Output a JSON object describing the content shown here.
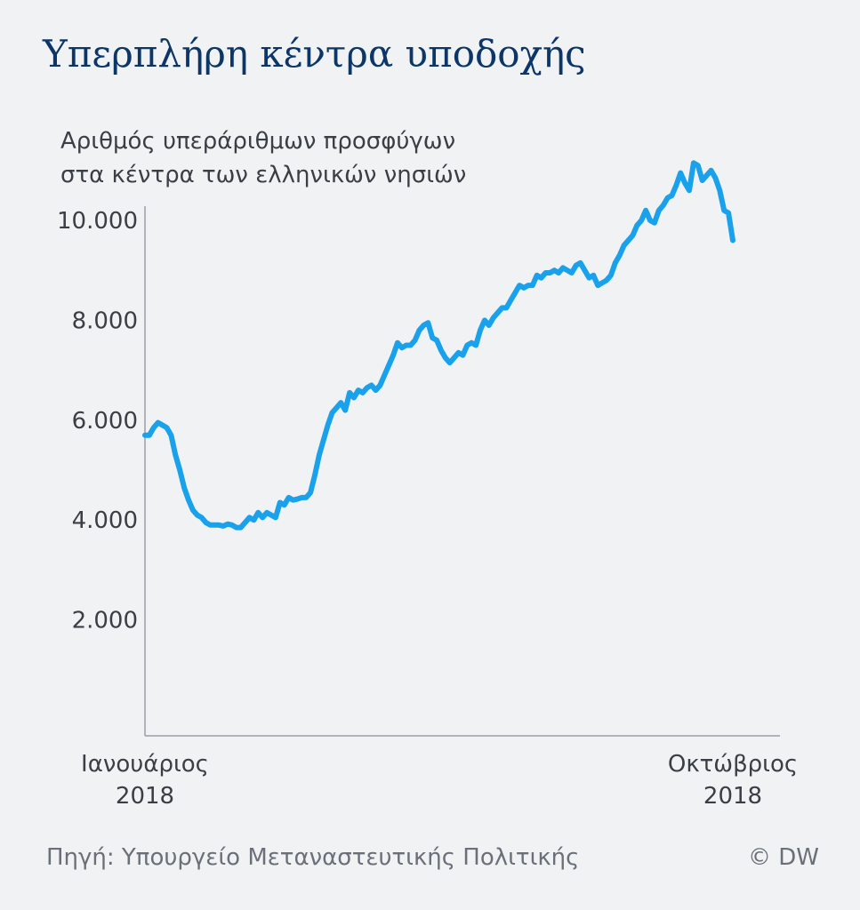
{
  "header": {
    "title": "Υπερπλήρη κέντρα υποδοχής",
    "subtitle_line1": "Αριθμός υπεράριθμων προσφύγων",
    "subtitle_line2": "στα κέντρα των ελληνικών νησιών"
  },
  "footer": {
    "source": "Πηγή: Υπουργείο Μεταναστευτικής Πολιτικής",
    "credit": "© DW"
  },
  "colors": {
    "line": "#1aa1ec",
    "title": "#0c3668",
    "axis": "#9aa0a6",
    "background": "#f1f2f4"
  },
  "chart_data": {
    "type": "line",
    "title": "Υπερπλήρη κέντρα υποδοχής",
    "ylabel": "Αριθμός υπεράριθμων προσφύγων στα κέντρα των ελληνικών νησιών",
    "xlabel": "",
    "ylim": [
      0,
      10600
    ],
    "y_ticks": [
      {
        "value": 2000,
        "label": "2.000"
      },
      {
        "value": 4000,
        "label": "4.000"
      },
      {
        "value": 6000,
        "label": "6.000"
      },
      {
        "value": 8000,
        "label": "8.000"
      },
      {
        "value": 10000,
        "label": "10.000"
      }
    ],
    "x_ticks": [
      {
        "date": "2018-01",
        "line1": "Ιανουάριος",
        "line2": "2018"
      },
      {
        "date": "2018-10",
        "line1": "Οκτώβριος",
        "line2": "2018"
      }
    ],
    "x_range": [
      "2018-01",
      "2018-10"
    ],
    "grid": false,
    "legend": "none",
    "series": [
      {
        "values": [
          5700,
          5700,
          5850,
          5950,
          5900,
          5850,
          5700,
          5300,
          5000,
          4650,
          4400,
          4200,
          4100,
          4050,
          3950,
          3900,
          3900,
          3900,
          3880,
          3920,
          3900,
          3850,
          3850,
          3950,
          4050,
          4000,
          4150,
          4050,
          4150,
          4100,
          4050,
          4350,
          4300,
          4450,
          4400,
          4420,
          4450,
          4450,
          4550,
          4900,
          5300,
          5600,
          5900,
          6150,
          6250,
          6350,
          6200,
          6550,
          6450,
          6600,
          6550,
          6650,
          6700,
          6600,
          6700,
          6900,
          7100,
          7300,
          7550,
          7450,
          7500,
          7500,
          7600,
          7800,
          7900,
          7950,
          7650,
          7600,
          7400,
          7250,
          7150,
          7250,
          7350,
          7300,
          7500,
          7550,
          7500,
          7800,
          8000,
          7900,
          8050,
          8150,
          8250,
          8250,
          8400,
          8550,
          8700,
          8650,
          8700,
          8700,
          8900,
          8850,
          8950,
          8950,
          9000,
          8950,
          9050,
          9000,
          8950,
          9100,
          9150,
          9000,
          8850,
          8900,
          8700,
          8750,
          8800,
          8900,
          9150,
          9300,
          9500,
          9600,
          9700,
          9900,
          10000,
          10200,
          10000,
          9950,
          10200,
          10300,
          10450,
          10500,
          10700,
          10950,
          10750,
          10600,
          11150,
          11100,
          10800,
          10900,
          11000,
          10850,
          10600,
          10200,
          10150,
          9600
        ]
      }
    ]
  }
}
